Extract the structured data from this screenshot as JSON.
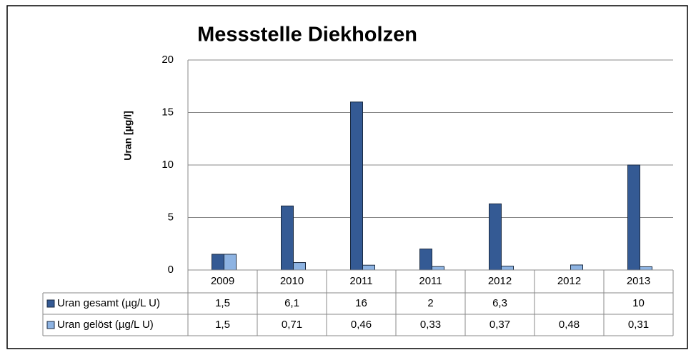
{
  "chart_data": {
    "type": "bar",
    "title": "Messstelle Diekholzen",
    "y_label": "Uran [µg/l]",
    "categories": [
      "2009",
      "2010",
      "2011",
      "2011",
      "2012",
      "2012",
      "2013"
    ],
    "series": [
      {
        "name": "Uran gesamt (µg/L U)",
        "color": "#345a94",
        "values": [
          1.5,
          6.1,
          16,
          2,
          6.3,
          null,
          10
        ],
        "value_labels": [
          "1,5",
          "6,1",
          "16",
          "2",
          "6,3",
          null,
          "10"
        ]
      },
      {
        "name": "Uran gelöst (µg/L U)",
        "color": "#8db3e2",
        "values": [
          1.5,
          0.71,
          0.46,
          0.33,
          0.37,
          0.48,
          0.31
        ],
        "value_labels": [
          "1,5",
          "0,71",
          "0,46",
          "0,33",
          "0,37",
          "0,48",
          "0,31"
        ]
      }
    ],
    "ylim": [
      0,
      20
    ],
    "yticks": [
      0,
      5,
      10,
      15,
      20
    ],
    "grid": true,
    "data_table": true
  }
}
